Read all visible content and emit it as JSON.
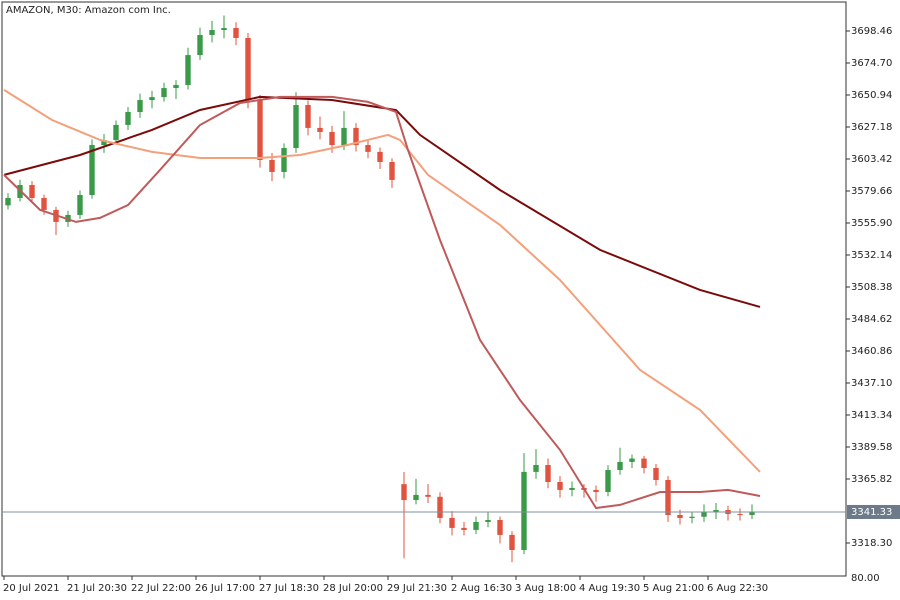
{
  "chart_data": {
    "type": "candlestick",
    "title": "AMAZON, M30:  Amazon com Inc.",
    "up_color": "#3a9a4a",
    "down_color": "#e0533f",
    "xlim": [
      -0.5,
      210.5
    ],
    "ylim": [
      3293.8,
      3720.0
    ],
    "yticks": [
      3698.46,
      {
        "value": 3674.7,
        "label": "3674.70"
      },
      3650.94,
      3627.18,
      3603.42,
      3579.66,
      {
        "value": 3555.9,
        "label": "3555.90"
      },
      3532.14,
      3508.38,
      3484.62,
      3460.86,
      {
        "value": 3437.1,
        "label": "3437.10"
      },
      3413.34,
      3389.58,
      3365.82,
      {
        "value": 3318.3,
        "label": "3318.30"
      }
    ],
    "bottom_label": "80.00",
    "xticks": [
      {
        "value": 0,
        "label": "20 Jul 2021"
      },
      {
        "value": 16,
        "label": "21 Jul 20:30"
      },
      {
        "value": 32,
        "label": "22 Jul 22:00"
      },
      {
        "value": 48,
        "label": "26 Jul 17:00"
      },
      {
        "value": 64,
        "label": "27 Jul 18:30"
      },
      {
        "value": 80,
        "label": "28 Jul 20:00"
      },
      {
        "value": 96,
        "label": "29 Jul 21:30"
      },
      {
        "value": 112,
        "label": "2 Aug 16:30"
      },
      {
        "value": 128,
        "label": "3 Aug 18:00"
      },
      {
        "value": 144,
        "label": "4 Aug 19:30"
      },
      {
        "value": 160,
        "label": "5 Aug 21:00"
      },
      {
        "value": 176,
        "label": "6 Aug 22:30"
      }
    ],
    "candles": [
      {
        "x": 1,
        "open": 3569.0,
        "high": 3578.0,
        "low": 3566.0,
        "close": 3574.5
      },
      {
        "x": 4,
        "open": 3574.5,
        "high": 3588.0,
        "low": 3572.0,
        "close": 3584.1
      },
      {
        "x": 7,
        "open": 3584.1,
        "high": 3587.0,
        "low": 3571.0,
        "close": 3574.5
      },
      {
        "x": 10,
        "open": 3574.5,
        "high": 3577.0,
        "low": 3562.0,
        "close": 3565.6
      },
      {
        "x": 13,
        "open": 3565.6,
        "high": 3568.0,
        "low": 3547.0,
        "close": 3556.7
      },
      {
        "x": 16,
        "open": 3556.7,
        "high": 3565.0,
        "low": 3553.0,
        "close": 3561.9
      },
      {
        "x": 19,
        "open": 3561.9,
        "high": 3580.0,
        "low": 3559.0,
        "close": 3576.7
      },
      {
        "x": 22,
        "open": 3576.7,
        "high": 3618.0,
        "low": 3574.0,
        "close": 3613.8
      },
      {
        "x": 25,
        "open": 3613.8,
        "high": 3622.0,
        "low": 3608.0,
        "close": 3617.5
      },
      {
        "x": 28,
        "open": 3617.5,
        "high": 3632.0,
        "low": 3614.0,
        "close": 3628.7
      },
      {
        "x": 31,
        "open": 3628.7,
        "high": 3642.0,
        "low": 3625.0,
        "close": 3638.3
      },
      {
        "x": 34,
        "open": 3638.3,
        "high": 3652.0,
        "low": 3634.0,
        "close": 3647.2
      },
      {
        "x": 37,
        "open": 3647.2,
        "high": 3654.0,
        "low": 3641.0,
        "close": 3649.4
      },
      {
        "x": 40,
        "open": 3649.4,
        "high": 3660.0,
        "low": 3646.0,
        "close": 3656.1
      },
      {
        "x": 43,
        "open": 3656.1,
        "high": 3662.0,
        "low": 3648.0,
        "close": 3658.4
      },
      {
        "x": 46,
        "open": 3658.4,
        "high": 3686.0,
        "low": 3655.0,
        "close": 3680.6
      },
      {
        "x": 49,
        "open": 3680.6,
        "high": 3701.0,
        "low": 3677.0,
        "close": 3695.5
      },
      {
        "x": 52,
        "open": 3695.5,
        "high": 3706.0,
        "low": 3690.0,
        "close": 3699.2
      },
      {
        "x": 55,
        "open": 3699.2,
        "high": 3710.0,
        "low": 3693.0,
        "close": 3700.7
      },
      {
        "x": 58,
        "open": 3700.7,
        "high": 3705.0,
        "low": 3688.0,
        "close": 3693.3
      },
      {
        "x": 61,
        "open": 3693.3,
        "high": 3697.0,
        "low": 3641.0,
        "close": 3647.2
      },
      {
        "x": 64,
        "open": 3647.2,
        "high": 3651.0,
        "low": 3597.0,
        "close": 3602.7
      },
      {
        "x": 67,
        "open": 3602.7,
        "high": 3608.0,
        "low": 3587.0,
        "close": 3593.8
      },
      {
        "x": 70,
        "open": 3593.8,
        "high": 3615.0,
        "low": 3589.0,
        "close": 3611.6
      },
      {
        "x": 73,
        "open": 3611.6,
        "high": 3653.0,
        "low": 3608.0,
        "close": 3643.5
      },
      {
        "x": 76,
        "open": 3643.5,
        "high": 3647.0,
        "low": 3621.0,
        "close": 3626.5
      },
      {
        "x": 79,
        "open": 3626.5,
        "high": 3635.0,
        "low": 3618.0,
        "close": 3623.5
      },
      {
        "x": 82,
        "open": 3623.5,
        "high": 3628.0,
        "low": 3608.0,
        "close": 3613.8
      },
      {
        "x": 85,
        "open": 3613.8,
        "high": 3639.0,
        "low": 3610.0,
        "close": 3626.5
      },
      {
        "x": 88,
        "open": 3626.5,
        "high": 3630.0,
        "low": 3609.0,
        "close": 3613.8
      },
      {
        "x": 91,
        "open": 3613.8,
        "high": 3618.0,
        "low": 3604.0,
        "close": 3608.7
      },
      {
        "x": 94,
        "open": 3608.7,
        "high": 3612.0,
        "low": 3596.0,
        "close": 3601.2
      },
      {
        "x": 97,
        "open": 3601.2,
        "high": 3604.0,
        "low": 3582.0,
        "close": 3587.9
      },
      {
        "x": 100,
        "open": 3362.0,
        "high": 3371.0,
        "low": 3307.0,
        "close": 3350.2
      },
      {
        "x": 103,
        "open": 3350.2,
        "high": 3366.0,
        "low": 3347.0,
        "close": 3354.0
      },
      {
        "x": 106,
        "open": 3354.0,
        "high": 3362.0,
        "low": 3348.0,
        "close": 3352.6
      },
      {
        "x": 109,
        "open": 3352.6,
        "high": 3356.0,
        "low": 3333.0,
        "close": 3336.9
      },
      {
        "x": 112,
        "open": 3336.9,
        "high": 3342.0,
        "low": 3324.0,
        "close": 3329.5
      },
      {
        "x": 115,
        "open": 3329.5,
        "high": 3334.0,
        "low": 3324.0,
        "close": 3328.0
      },
      {
        "x": 118,
        "open": 3328.0,
        "high": 3338.0,
        "low": 3325.0,
        "close": 3333.9
      },
      {
        "x": 121,
        "open": 3333.9,
        "high": 3341.0,
        "low": 3330.0,
        "close": 3335.4
      },
      {
        "x": 124,
        "open": 3335.4,
        "high": 3338.0,
        "low": 3318.0,
        "close": 3324.3
      },
      {
        "x": 127,
        "open": 3324.3,
        "high": 3327.0,
        "low": 3304.0,
        "close": 3313.1
      },
      {
        "x": 130,
        "open": 3313.1,
        "high": 3385.0,
        "low": 3310.0,
        "close": 3371.1
      },
      {
        "x": 133,
        "open": 3371.1,
        "high": 3388.0,
        "low": 3366.0,
        "close": 3376.2
      },
      {
        "x": 136,
        "open": 3376.2,
        "high": 3381.0,
        "low": 3359.0,
        "close": 3363.6
      },
      {
        "x": 139,
        "open": 3363.6,
        "high": 3368.0,
        "low": 3352.0,
        "close": 3357.7
      },
      {
        "x": 142,
        "open": 3357.7,
        "high": 3364.0,
        "low": 3353.0,
        "close": 3359.2
      },
      {
        "x": 145,
        "open": 3359.2,
        "high": 3362.0,
        "low": 3352.0,
        "close": 3357.7
      },
      {
        "x": 148,
        "open": 3357.7,
        "high": 3361.0,
        "low": 3349.0,
        "close": 3356.2
      },
      {
        "x": 151,
        "open": 3356.2,
        "high": 3376.0,
        "low": 3353.0,
        "close": 3372.5
      },
      {
        "x": 154,
        "open": 3372.5,
        "high": 3389.0,
        "low": 3369.0,
        "close": 3378.5
      },
      {
        "x": 157,
        "open": 3378.5,
        "high": 3384.0,
        "low": 3374.0,
        "close": 3381.0
      },
      {
        "x": 160,
        "open": 3381.0,
        "high": 3383.0,
        "low": 3370.0,
        "close": 3374.0
      },
      {
        "x": 163,
        "open": 3374.0,
        "high": 3377.0,
        "low": 3361.0,
        "close": 3365.1
      },
      {
        "x": 166,
        "open": 3365.1,
        "high": 3368.0,
        "low": 3334.0,
        "close": 3339.1
      },
      {
        "x": 169,
        "open": 3339.1,
        "high": 3343.0,
        "low": 3332.0,
        "close": 3336.9
      },
      {
        "x": 172,
        "open": 3336.9,
        "high": 3341.0,
        "low": 3333.0,
        "close": 3337.8
      },
      {
        "x": 175,
        "open": 3337.8,
        "high": 3347.0,
        "low": 3334.0,
        "close": 3341.3
      },
      {
        "x": 178,
        "open": 3341.3,
        "high": 3348.0,
        "low": 3336.0,
        "close": 3342.8
      },
      {
        "x": 181,
        "open": 3342.8,
        "high": 3346.0,
        "low": 3335.0,
        "close": 3339.8
      },
      {
        "x": 184,
        "open": 3339.8,
        "high": 3344.0,
        "low": 3335.0,
        "close": 3339.1
      },
      {
        "x": 187,
        "open": 3339.1,
        "high": 3347.0,
        "low": 3336.0,
        "close": 3341.33
      }
    ],
    "series": [
      {
        "color": "#7b0a0a",
        "x": [
          0,
          19,
          37,
          49,
          64,
          82,
          98,
          104,
          124,
          149,
          174,
          189
        ],
        "values": [
          3591.6,
          3606.4,
          3625.0,
          3639.8,
          3649.5,
          3647.2,
          3639.8,
          3621.3,
          3580.4,
          3535.9,
          3506.2,
          3493.6
        ]
      },
      {
        "color": "#f4a07a",
        "x": [
          0,
          12,
          24,
          37,
          49,
          64,
          74,
          86,
          96,
          99,
          106,
          124,
          139,
          159,
          174,
          189
        ],
        "values": [
          3654.7,
          3632.4,
          3617.6,
          3608.7,
          3604.2,
          3604.2,
          3606.4,
          3613.9,
          3621.3,
          3617.6,
          3591.6,
          3554.5,
          3513.6,
          3446.8,
          3417.1,
          3371.1
        ]
      },
      {
        "color": "#c05a5a",
        "x": [
          0,
          9,
          18,
          24,
          31,
          39,
          49,
          59,
          69,
          82,
          91,
          98,
          101,
          109,
          119,
          129,
          139,
          148,
          154,
          164,
          174,
          181,
          189
        ],
        "values": [
          3591.6,
          3565.6,
          3556.7,
          3559.7,
          3569.3,
          3595.3,
          3628.7,
          3645.0,
          3649.5,
          3649.5,
          3645.8,
          3638.4,
          3610.1,
          3543.3,
          3469.1,
          3424.5,
          3387.4,
          3344.3,
          3346.6,
          3356.2,
          3356.2,
          3357.7,
          3353.2
        ]
      }
    ]
  }
}
